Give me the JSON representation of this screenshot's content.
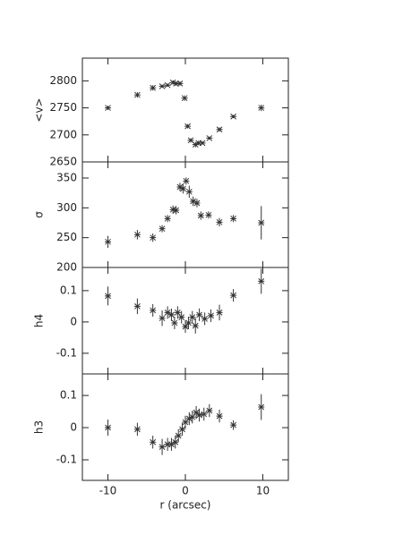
{
  "chart_data": [
    {
      "type": "scatter",
      "y_label": "<v>",
      "xlim": [
        -13.3,
        13.3
      ],
      "ylim": [
        2650,
        2842
      ],
      "yticks": [
        2650,
        2700,
        2750,
        2800
      ],
      "x": [
        -10,
        -6.2,
        -4.2,
        -3,
        -2.3,
        -1.6,
        -1.2,
        -0.7,
        -0.1,
        0.3,
        0.7,
        1.3,
        1.7,
        2.2,
        3.1,
        4.4,
        6.2,
        9.8
      ],
      "values": [
        2750,
        2774,
        2787,
        2790,
        2792,
        2797,
        2795,
        2795,
        2768,
        2716,
        2690,
        2682,
        2685,
        2685,
        2694,
        2710,
        2734,
        2750
      ],
      "errors": [
        4,
        5,
        5,
        3,
        3,
        4,
        4,
        4,
        5,
        4,
        4,
        5,
        4,
        3,
        3,
        4,
        3,
        6
      ],
      "color": "#333333"
    },
    {
      "type": "scatter",
      "y_label": "σ",
      "xlim": [
        -13.3,
        13.3
      ],
      "ylim": [
        200,
        377
      ],
      "yticks": [
        200,
        250,
        300,
        350
      ],
      "x": [
        -10,
        -6.2,
        -4.2,
        -3,
        -2.3,
        -1.6,
        -1.2,
        -0.7,
        -0.3,
        0.1,
        0.5,
        1,
        1.5,
        2,
        3,
        4.4,
        6.2,
        9.8
      ],
      "values": [
        243,
        255,
        250,
        265,
        282,
        297,
        296,
        335,
        332,
        345,
        327,
        311,
        308,
        287,
        288,
        276,
        282,
        275
      ],
      "errors": [
        10,
        8,
        7,
        6,
        6,
        7,
        7,
        7,
        8,
        6,
        10,
        8,
        7,
        7,
        6,
        7,
        6,
        28
      ],
      "color": "#333333"
    },
    {
      "type": "scatter",
      "y_label": "h4",
      "xlim": [
        -13.3,
        13.3
      ],
      "ylim": [
        -0.166,
        0.174
      ],
      "yticks": [
        -0.1,
        0,
        0.1
      ],
      "x": [
        -10,
        -6.2,
        -4.2,
        -3,
        -2.3,
        -1.8,
        -1.4,
        -1,
        -0.5,
        0,
        0.4,
        0.9,
        1.3,
        1.8,
        2.5,
        3.3,
        4.4,
        6.2,
        9.8
      ],
      "values": [
        0.083,
        0.05,
        0.037,
        0.012,
        0.03,
        0.023,
        -0.003,
        0.03,
        0.015,
        -0.015,
        -0.003,
        0.015,
        -0.012,
        0.023,
        0.01,
        0.02,
        0.03,
        0.085,
        0.13
      ],
      "errors": [
        0.03,
        0.025,
        0.02,
        0.025,
        0.02,
        0.02,
        0.02,
        0.02,
        0.02,
        0.02,
        0.02,
        0.02,
        0.025,
        0.02,
        0.02,
        0.02,
        0.025,
        0.02,
        0.04
      ],
      "color": "#333333"
    },
    {
      "type": "scatter",
      "y_label": "h3",
      "x_label": "r (arcsec)",
      "xlim": [
        -13.3,
        13.3
      ],
      "ylim": [
        -0.164,
        0.167
      ],
      "yticks": [
        -0.1,
        0,
        0.1
      ],
      "xticks": [
        -10,
        0,
        10
      ],
      "x": [
        -10,
        -6.2,
        -4.2,
        -3,
        -2.3,
        -1.8,
        -1.3,
        -0.9,
        -0.4,
        0,
        0.5,
        0.9,
        1.4,
        1.8,
        2.4,
        3.1,
        4.4,
        6.2,
        9.8
      ],
      "values": [
        0.0,
        -0.005,
        -0.045,
        -0.06,
        -0.052,
        -0.052,
        -0.045,
        -0.025,
        -0.005,
        0.017,
        0.028,
        0.033,
        0.047,
        0.039,
        0.042,
        0.053,
        0.036,
        0.008,
        0.064
      ],
      "errors": [
        0.025,
        0.02,
        0.02,
        0.025,
        0.02,
        0.02,
        0.02,
        0.02,
        0.02,
        0.02,
        0.02,
        0.02,
        0.02,
        0.02,
        0.02,
        0.02,
        0.02,
        0.015,
        0.04
      ],
      "color": "#333333"
    }
  ]
}
